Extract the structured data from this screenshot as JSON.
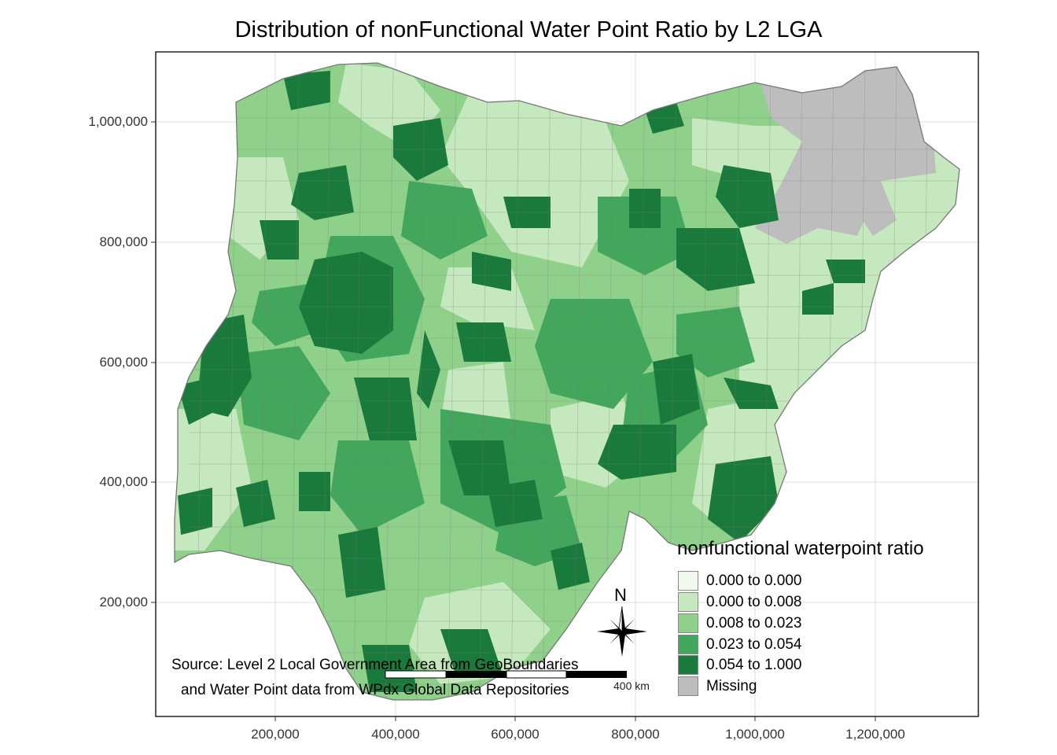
{
  "title": "Distribution of nonFunctional Water Point Ratio by L2 LGA",
  "axes": {
    "x_ticks": [
      "200,000",
      "400,000",
      "600,000",
      "800,000",
      "1,000,000",
      "1,200,000"
    ],
    "y_ticks": [
      "1,000,000",
      "800,000",
      "600,000",
      "400,000",
      "200,000"
    ]
  },
  "legend": {
    "title": "nonfunctional waterpoint ratio",
    "items": [
      {
        "label": "0.000 to 0.000",
        "color": "#f1f9ef"
      },
      {
        "label": "0.000 to 0.008",
        "color": "#c6e8be"
      },
      {
        "label": "0.008 to 0.023",
        "color": "#8fd18a"
      },
      {
        "label": "0.023 to 0.054",
        "color": "#42a75c"
      },
      {
        "label": "0.054 to 1.000",
        "color": "#197a3b"
      },
      {
        "label": "Missing",
        "color": "#bdbdbd"
      }
    ]
  },
  "caption": {
    "line1": "Source: Level 2 Local Government Area from GeoBoundaries",
    "line2": "and Water Point data from WPdx Global Data Repositories"
  },
  "north_arrow": {
    "label": "N"
  },
  "scale_bar": {
    "units": "400 km"
  }
}
